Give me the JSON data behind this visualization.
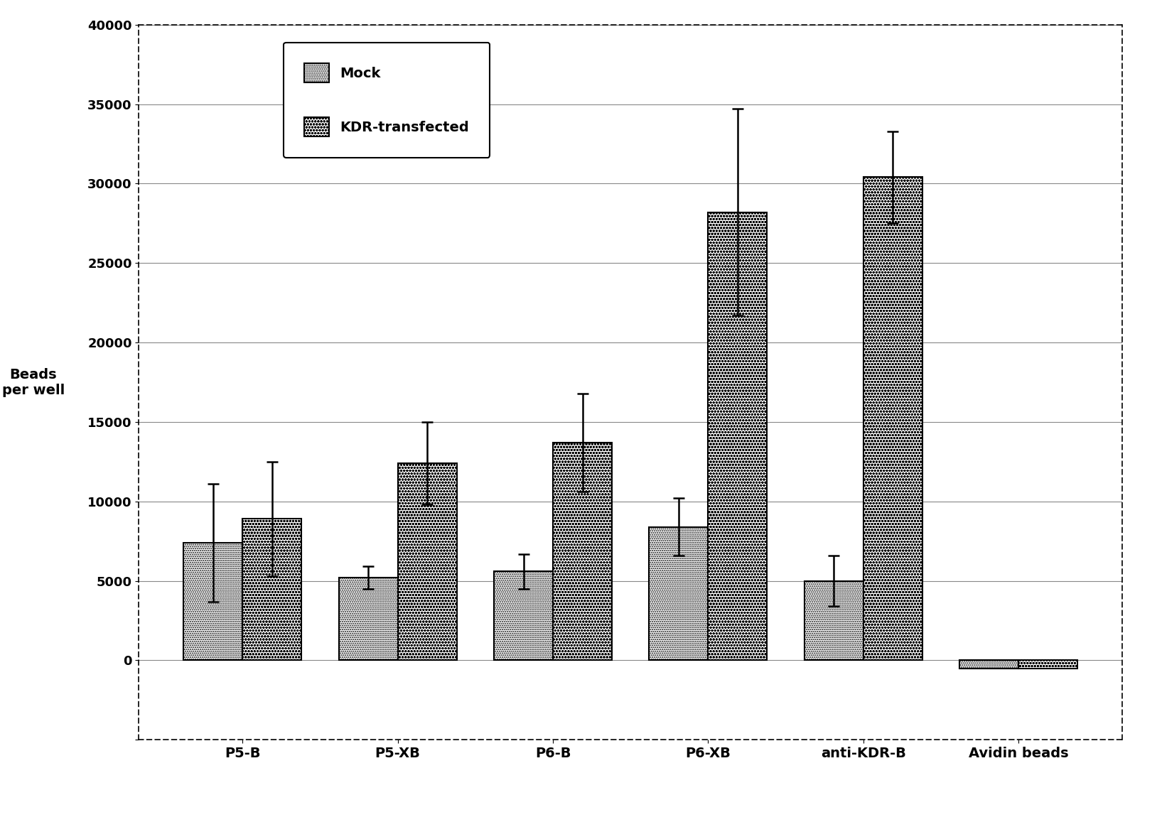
{
  "categories": [
    "P5-B",
    "P5-XB",
    "P6-B",
    "P6-XB",
    "anti-KDR-B",
    "Avidin beads"
  ],
  "mock_values": [
    7400,
    5200,
    5600,
    8400,
    5000,
    -500
  ],
  "kdr_values": [
    8900,
    12400,
    13700,
    28200,
    30400,
    -500
  ],
  "mock_errors": [
    3700,
    700,
    1100,
    1800,
    1600,
    0
  ],
  "kdr_errors": [
    3600,
    2600,
    3100,
    6500,
    2900,
    0
  ],
  "ylabel": "Beads\nper well",
  "ylim": [
    -5000,
    40000
  ],
  "yticks": [
    -5000,
    0,
    5000,
    10000,
    15000,
    20000,
    25000,
    30000,
    35000,
    40000
  ],
  "legend_mock": "Mock",
  "legend_kdr": "KDR-transfected",
  "bar_width": 0.38,
  "background_color": "white",
  "label_fontsize": 14,
  "tick_fontsize": 13
}
